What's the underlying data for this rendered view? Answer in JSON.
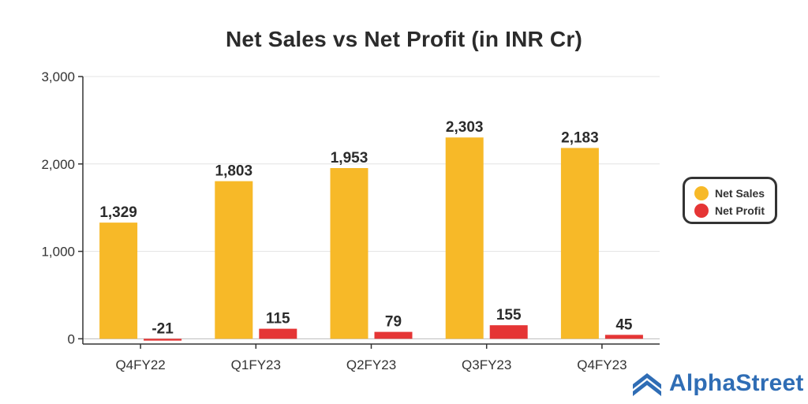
{
  "chart_data": {
    "type": "bar",
    "title": "Net Sales vs Net Profit (in INR Cr)",
    "categories": [
      "Q4FY22",
      "Q1FY23",
      "Q2FY23",
      "Q3FY23",
      "Q4FY23"
    ],
    "series": [
      {
        "name": "Net Sales",
        "color": "#f7b928",
        "values": [
          1329,
          1803,
          1953,
          2303,
          2183
        ],
        "labels": [
          "1,329",
          "1,803",
          "1,953",
          "2,303",
          "2,183"
        ]
      },
      {
        "name": "Net Profit",
        "color": "#e53535",
        "values": [
          -21,
          115,
          79,
          155,
          45
        ],
        "labels": [
          "-21",
          "115",
          "79",
          "155",
          "45"
        ]
      }
    ],
    "yticks": [
      {
        "value": 0,
        "label": "0"
      },
      {
        "value": 1000,
        "label": "1,000"
      },
      {
        "value": 2000,
        "label": "2,000"
      },
      {
        "value": 3000,
        "label": "3,000"
      }
    ],
    "ylim": [
      -60,
      3000
    ],
    "grid": true,
    "legend_position": "right"
  },
  "legend": {
    "items": [
      {
        "label": "Net Sales",
        "color": "#f7b928"
      },
      {
        "label": "Net Profit",
        "color": "#e53535"
      }
    ]
  },
  "brand": {
    "name": "AlphaStreet",
    "icon": "alphastreet-logo-icon",
    "color": "#2f6db5"
  }
}
